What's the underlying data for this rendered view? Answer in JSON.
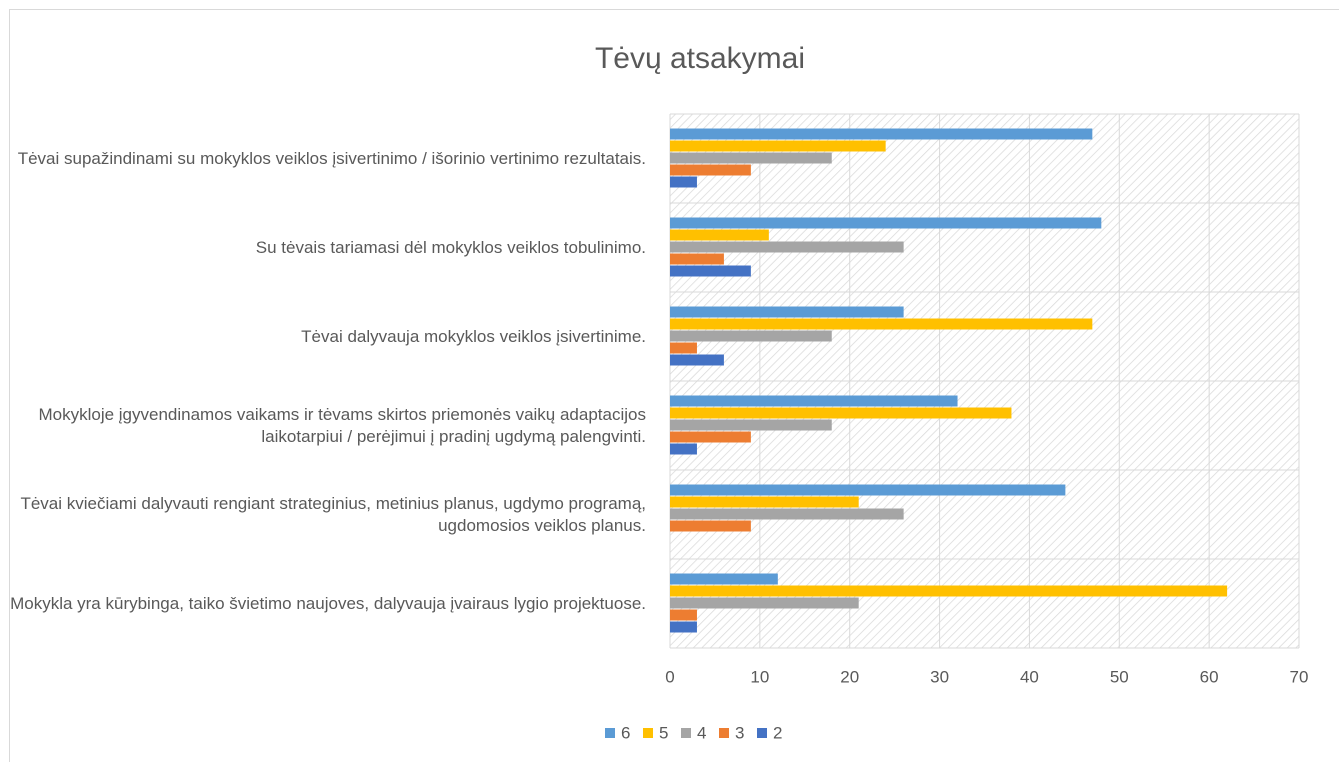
{
  "chart_data": {
    "type": "bar",
    "orientation": "horizontal",
    "title": "Tėvų atsakymai",
    "categories": [
      "Tėvai supažindinami su mokyklos veiklos įsivertinimo / išorinio vertinimo rezultatais.",
      "Su tėvais tariamasi dėl mokyklos veiklos tobulinimo.",
      "Tėvai dalyvauja mokyklos veiklos įsivertinime.",
      "Mokykloje įgyvendinamos vaikams ir tėvams skirtos priemonės vaikų adaptacijos laikotarpiui / perėjimui į pradinį ugdymą palengvinti.",
      "Tėvai kviečiami dalyvauti rengiant strateginius, metinius planus, ugdymo programą, ugdomosios veiklos planus.",
      "Mokykla yra kūrybinga, taiko švietimo naujoves, dalyvauja įvairaus lygio projektuose."
    ],
    "series": [
      {
        "name": "6",
        "color": "#5b9bd5",
        "values": [
          47,
          48,
          26,
          32,
          44,
          12
        ]
      },
      {
        "name": "5",
        "color": "#ffc000",
        "values": [
          24,
          11,
          47,
          38,
          21,
          62
        ]
      },
      {
        "name": "4",
        "color": "#a5a5a5",
        "values": [
          18,
          26,
          18,
          18,
          26,
          21
        ]
      },
      {
        "name": "3",
        "color": "#ed7d31",
        "values": [
          9,
          6,
          3,
          9,
          9,
          3
        ]
      },
      {
        "name": "2",
        "color": "#4472c4",
        "values": [
          3,
          9,
          6,
          3,
          0,
          3
        ]
      }
    ],
    "xlim": [
      0,
      70
    ],
    "xticks": [
      0,
      10,
      20,
      30,
      40,
      50,
      60,
      70
    ],
    "grid": true,
    "legend": "bottom"
  }
}
